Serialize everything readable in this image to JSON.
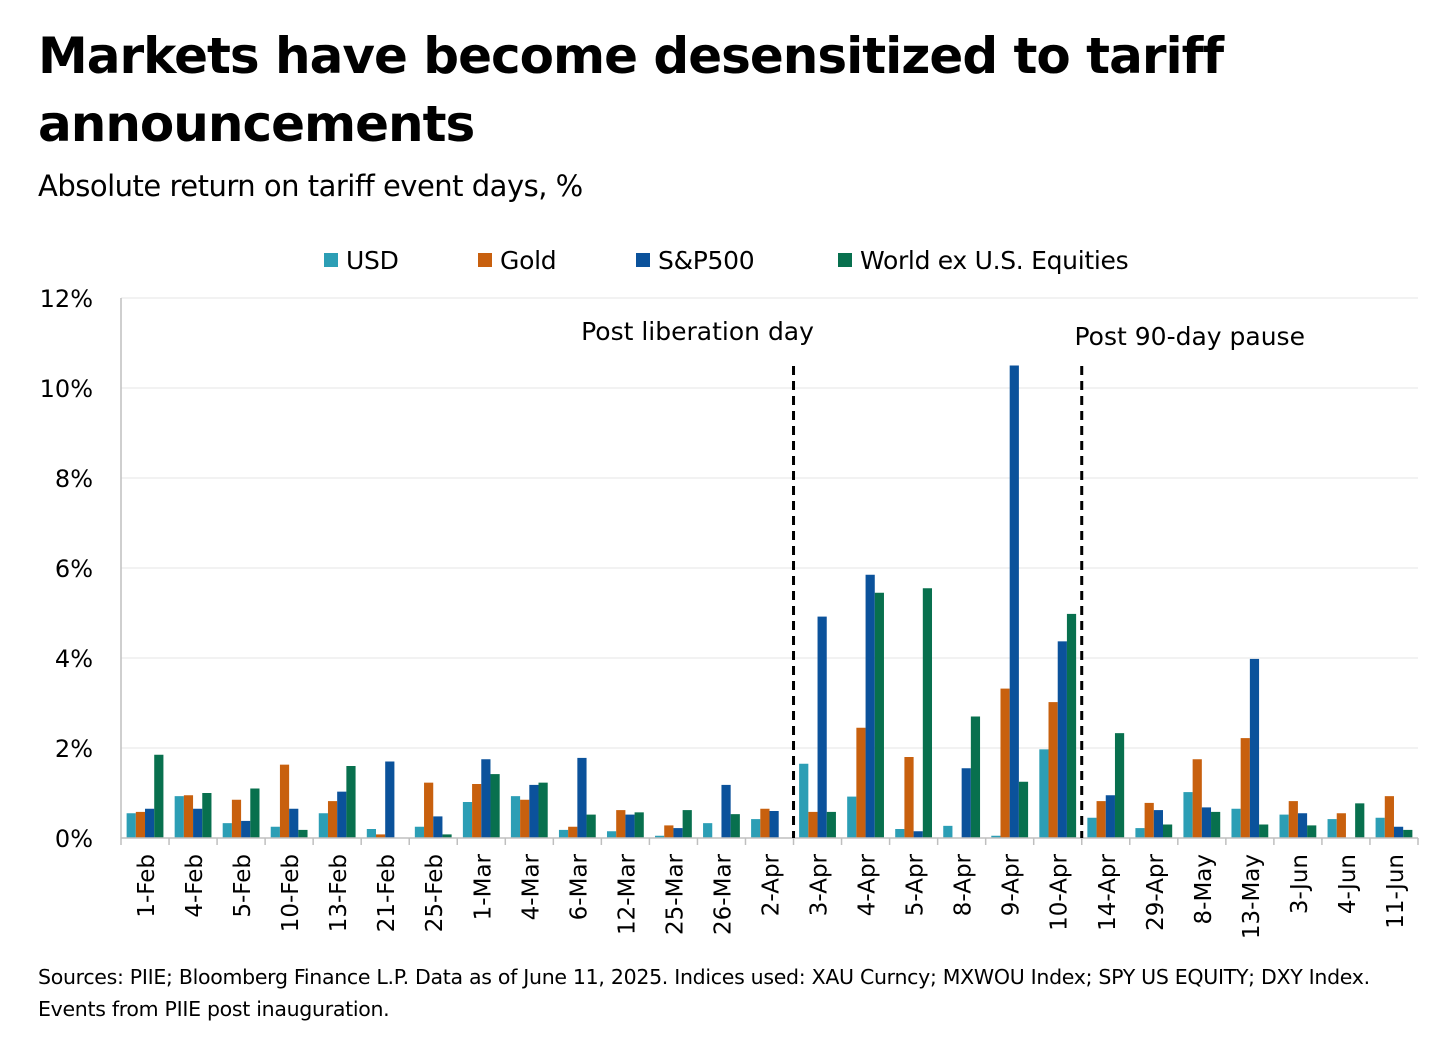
{
  "title": "Markets have become desensitized to tariff announcements",
  "subtitle": "Absolute return on tariff event days, %",
  "sources": "Sources: PIIE; Bloomberg Finance L.P. Data as of June 11, 2025. Indices used: XAU Curncy; MXWOU Index; SPY US EQUITY; DXY Index. Events from PIIE post inauguration.",
  "colors": {
    "usd": "#2c9eb5",
    "gold": "#c8600e",
    "sp500": "#0b529b",
    "world": "#08704e",
    "grid": "#e6e6e6",
    "axis": "#bfbfbf"
  },
  "chart_data": {
    "type": "bar",
    "title": "Markets have become desensitized to tariff announcements",
    "subtitle": "Absolute return on tariff event days, %",
    "xlabel": "",
    "ylabel": "",
    "ylim": [
      0,
      12
    ],
    "yticks": [
      0,
      2,
      4,
      6,
      8,
      10,
      12
    ],
    "ytick_labels": [
      "0%",
      "2%",
      "4%",
      "6%",
      "8%",
      "10%",
      "12%"
    ],
    "grid": true,
    "legend_position": "top",
    "categories": [
      "1-Feb",
      "4-Feb",
      "5-Feb",
      "10-Feb",
      "13-Feb",
      "21-Feb",
      "25-Feb",
      "1-Mar",
      "4-Mar",
      "6-Mar",
      "12-Mar",
      "25-Mar",
      "26-Mar",
      "2-Apr",
      "3-Apr",
      "4-Apr",
      "5-Apr",
      "8-Apr",
      "9-Apr",
      "10-Apr",
      "14-Apr",
      "29-Apr",
      "8-May",
      "13-May",
      "3-Jun",
      "4-Jun",
      "11-Jun"
    ],
    "series": [
      {
        "name": "USD",
        "color_key": "usd",
        "values": [
          0.55,
          0.93,
          0.33,
          0.25,
          0.55,
          0.2,
          0.25,
          0.8,
          0.93,
          0.18,
          0.15,
          0.05,
          0.33,
          0.42,
          1.65,
          0.92,
          0.2,
          0.27,
          0.05,
          1.97,
          0.45,
          0.22,
          1.02,
          0.65,
          0.52,
          0.42,
          0.45
        ]
      },
      {
        "name": "Gold",
        "color_key": "gold",
        "values": [
          0.58,
          0.95,
          0.85,
          1.63,
          0.82,
          0.08,
          1.23,
          1.2,
          0.85,
          0.25,
          0.62,
          0.28,
          0.0,
          0.65,
          0.58,
          2.45,
          1.8,
          0.0,
          3.32,
          3.02,
          0.82,
          0.78,
          1.75,
          2.22,
          0.82,
          0.55,
          0.93
        ]
      },
      {
        "name": "S&P500",
        "color_key": "sp500",
        "values": [
          0.65,
          0.65,
          0.38,
          0.65,
          1.03,
          1.7,
          0.48,
          1.75,
          1.18,
          1.78,
          0.52,
          0.22,
          1.18,
          0.6,
          4.92,
          5.85,
          0.15,
          1.55,
          10.5,
          4.37,
          0.95,
          0.62,
          0.68,
          3.98,
          0.55,
          0.0,
          0.25
        ]
      },
      {
        "name": "World ex U.S. Equities",
        "color_key": "world",
        "values": [
          1.85,
          1.0,
          1.1,
          0.18,
          1.6,
          0.0,
          0.08,
          1.42,
          1.23,
          0.52,
          0.57,
          0.62,
          0.53,
          0.0,
          0.58,
          5.45,
          5.55,
          2.7,
          1.25,
          4.98,
          2.33,
          0.3,
          0.58,
          0.3,
          0.28,
          0.77,
          0.18
        ]
      }
    ],
    "annotations": [
      {
        "text": "Post liberation day",
        "after_category": "2-Apr",
        "style": "dashed-vertical-line"
      },
      {
        "text": "Post 90-day pause",
        "after_category": "10-Apr",
        "style": "dashed-vertical-line"
      }
    ]
  }
}
